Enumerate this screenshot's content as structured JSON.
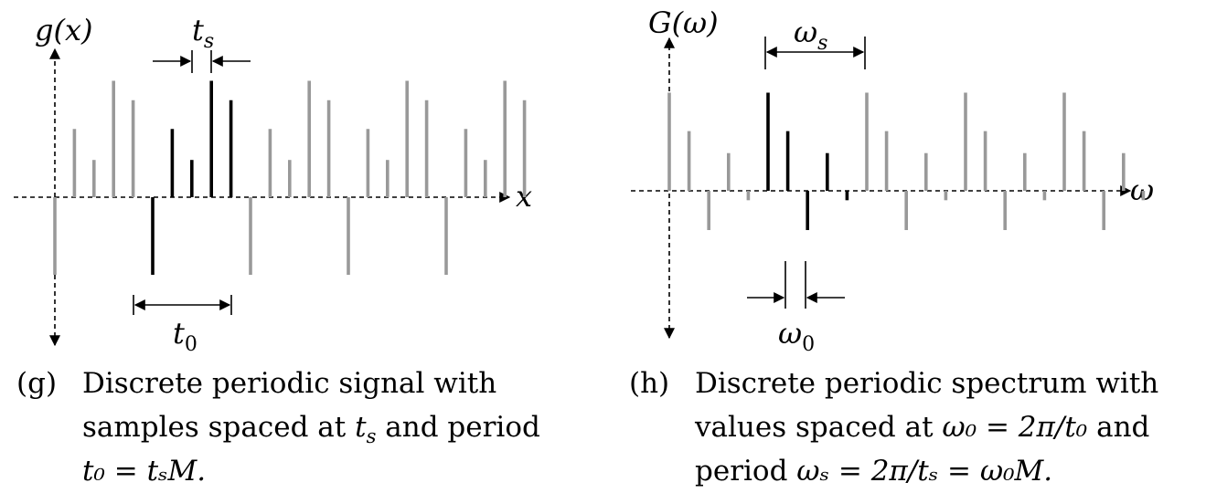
{
  "panel_g": {
    "y_axis_label": "g(x)",
    "x_axis_label": "x",
    "spacing_label": {
      "main": "t",
      "sub": "s"
    },
    "period_label": {
      "main": "t",
      "sub": "0"
    },
    "samples_highlighted": [
      -1.0,
      0.88,
      0.48,
      1.5,
      1.25
    ],
    "samples_period": [
      -1.0,
      0.88,
      0.48,
      1.5,
      1.25
    ],
    "periods": 5,
    "highlighted_period_index": 1
  },
  "panel_h": {
    "y_axis_label": "G(ω)",
    "x_axis_label": "ω",
    "period_label": {
      "main": "ω",
      "sub": "s"
    },
    "spacing_label": {
      "main": "ω",
      "sub": "0"
    },
    "samples_period": [
      1.25,
      0.76,
      -0.5,
      0.48,
      -0.12
    ],
    "periods": 5,
    "highlighted_period_index": 1
  },
  "captions": {
    "g": {
      "tag": "(g)",
      "line1": "Discrete periodic signal with",
      "line2_pre": "samples spaced at ",
      "line2_var": "t",
      "line2_sub": "s",
      "line2_post": " and period",
      "line3": "t₀ = tₛM."
    },
    "h": {
      "tag": "(h)",
      "line1": "Discrete periodic spectrum with",
      "line2_pre": "values spaced at ",
      "line2_math": "ω₀ = 2π/t₀",
      "line2_post": " and",
      "line3_pre": "period ",
      "line3_math": "ωₛ = 2π/tₛ = ω₀M."
    }
  },
  "colors": {
    "highlight": "#000000",
    "other": "#999999",
    "axis": "#000000"
  }
}
